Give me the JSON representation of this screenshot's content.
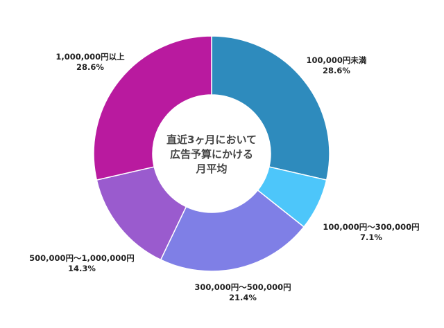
{
  "chart_data": {
    "type": "pie",
    "donut": true,
    "center_text": [
      "直近3ヶ月において",
      "広告予算にかける",
      "月平均"
    ],
    "slices": [
      {
        "label": "100,000円未満",
        "value": 28.6,
        "value_text": "28.6%",
        "color": "#2e8bbd"
      },
      {
        "label": "100,000円～300,000円",
        "value": 7.1,
        "value_text": "7.1%",
        "color": "#4dc6fa"
      },
      {
        "label": "300,000円～500,000円",
        "value": 21.4,
        "value_text": "21.4%",
        "color": "#7f7fe6"
      },
      {
        "label": "500,000円～1,000,000円",
        "value": 14.3,
        "value_text": "14.3%",
        "color": "#9a5bce"
      },
      {
        "label": "1,000,000円以上",
        "value": 28.6,
        "value_text": "28.6%",
        "color": "#b91a9f"
      }
    ]
  }
}
